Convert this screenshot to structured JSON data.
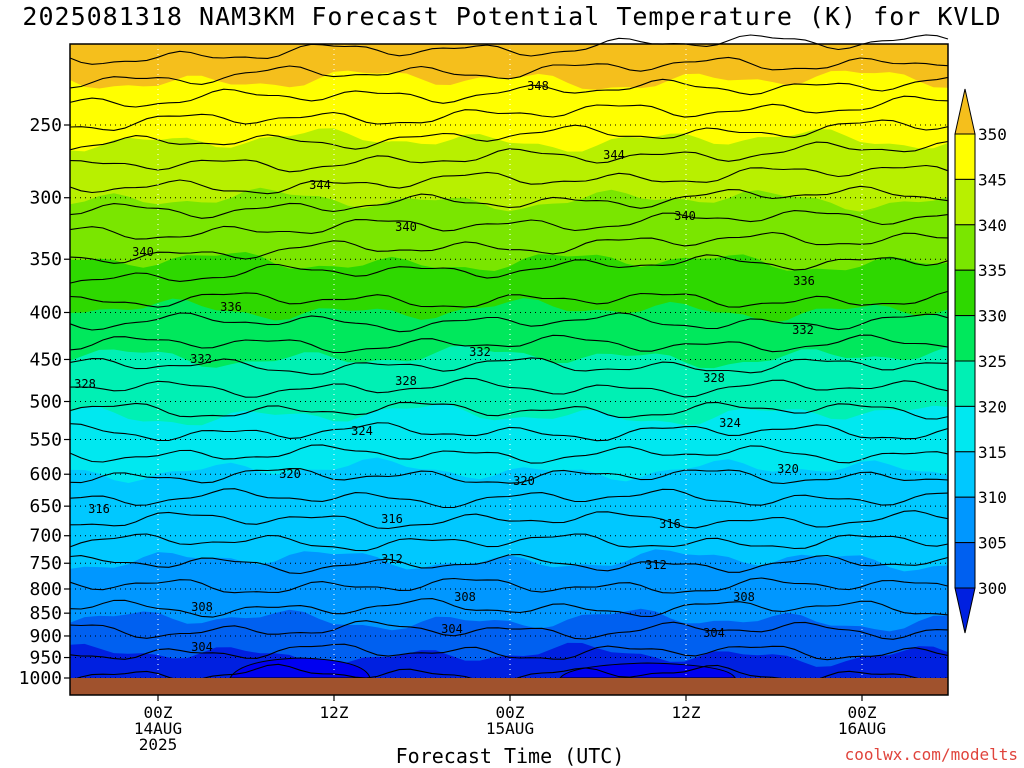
{
  "chart_data": {
    "type": "contour",
    "title": "2025081318 NAM3KM Forecast Potential Temperature (K) for KVLD",
    "xlabel": "Forecast Time (UTC)",
    "ylabel": "",
    "y_axis_ticks": [
      "250",
      "300",
      "350",
      "400",
      "450",
      "500",
      "550",
      "600",
      "650",
      "700",
      "750",
      "800",
      "850",
      "900",
      "950",
      "1000"
    ],
    "y_axis_values": [
      250,
      300,
      350,
      400,
      450,
      500,
      550,
      600,
      650,
      700,
      750,
      800,
      850,
      900,
      950,
      1000
    ],
    "x_axis_ticks": [
      {
        "time": "00Z",
        "date": "14AUG",
        "year": "2025"
      },
      {
        "time": "12Z",
        "date": "",
        "year": ""
      },
      {
        "time": "00Z",
        "date": "15AUG",
        "year": ""
      },
      {
        "time": "12Z",
        "date": "",
        "year": ""
      },
      {
        "time": "00Z",
        "date": "16AUG",
        "year": ""
      }
    ],
    "colorbar": {
      "labels": [
        "350",
        "345",
        "340",
        "335",
        "330",
        "325",
        "320",
        "315",
        "310",
        "305",
        "300"
      ],
      "colors": [
        "#f5bf1c",
        "#ffff00",
        "#b8f000",
        "#7ae600",
        "#2ed800",
        "#00e85c",
        "#00f0b4",
        "#00e8f0",
        "#00c8ff",
        "#0097ff",
        "#0060f0",
        "#0020e0"
      ]
    },
    "contour_labels": [
      {
        "value": "348"
      },
      {
        "value": "344"
      },
      {
        "value": "344"
      },
      {
        "value": "340"
      },
      {
        "value": "340"
      },
      {
        "value": "340"
      },
      {
        "value": "336"
      },
      {
        "value": "336"
      },
      {
        "value": "332"
      },
      {
        "value": "332"
      },
      {
        "value": "332"
      },
      {
        "value": "328"
      },
      {
        "value": "328"
      },
      {
        "value": "328"
      },
      {
        "value": "324"
      },
      {
        "value": "324"
      },
      {
        "value": "320"
      },
      {
        "value": "320"
      },
      {
        "value": "320"
      },
      {
        "value": "316"
      },
      {
        "value": "316"
      },
      {
        "value": "316"
      },
      {
        "value": "312"
      },
      {
        "value": "312"
      },
      {
        "value": "308"
      },
      {
        "value": "308"
      },
      {
        "value": "308"
      },
      {
        "value": "304"
      },
      {
        "value": "304"
      },
      {
        "value": "304"
      }
    ],
    "ground_color": "#a0522d",
    "grid": "dotted"
  },
  "watermark": "coolwx.com/modelts"
}
